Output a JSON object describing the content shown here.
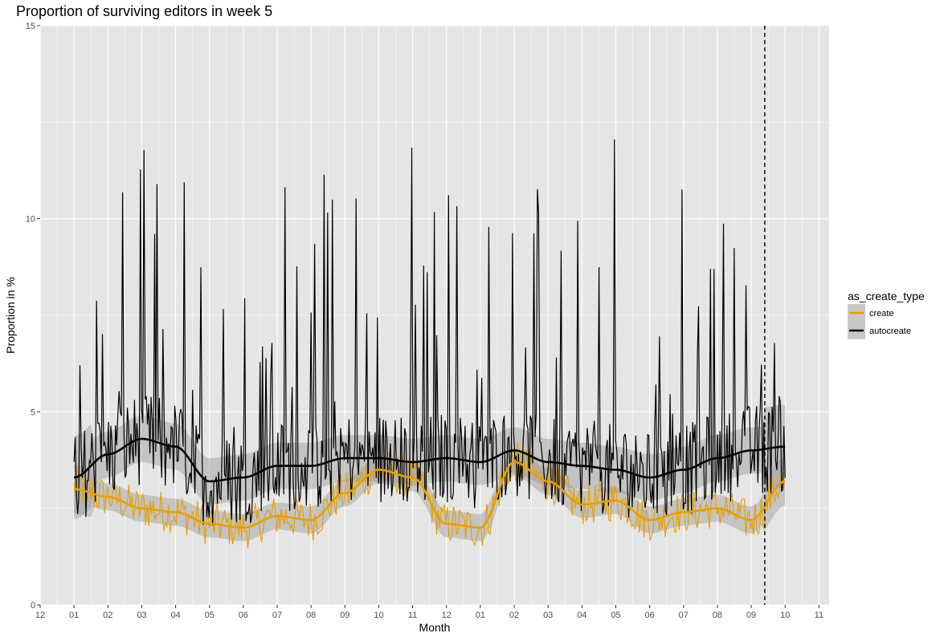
{
  "chart_data": {
    "type": "line",
    "title": "Proportion of surviving editors in week 5",
    "xlabel": "Month",
    "ylabel": "Proportion in %",
    "x_tick_labels": [
      "12",
      "01",
      "02",
      "03",
      "04",
      "05",
      "06",
      "07",
      "08",
      "09",
      "10",
      "11",
      "12",
      "01",
      "02",
      "03",
      "04",
      "05",
      "06",
      "07",
      "08",
      "09",
      "10",
      "11"
    ],
    "y_ticks": [
      0,
      5,
      10,
      15
    ],
    "xlim": [
      -1,
      22.3
    ],
    "ylim": [
      0,
      15
    ],
    "grid": true,
    "legend": {
      "title": "as_create_type",
      "position": "right",
      "entries": [
        {
          "label": "create",
          "color": "#E69F00"
        },
        {
          "label": "autocreate",
          "color": "#000000"
        }
      ]
    },
    "vline": {
      "x": 20.4,
      "style": "dashed",
      "color": "#000000"
    },
    "series": [
      {
        "name": "create",
        "color": "#E69F00",
        "smooth_x": [
          0,
          1,
          2,
          3,
          4,
          5,
          6,
          7,
          8,
          9,
          10,
          11,
          12,
          13,
          14,
          15,
          16,
          17,
          18,
          19,
          20,
          21
        ],
        "smooth_y": [
          3.0,
          2.8,
          2.5,
          2.4,
          2.1,
          2.0,
          2.3,
          2.2,
          2.9,
          3.5,
          3.3,
          2.1,
          2.0,
          3.7,
          3.2,
          2.6,
          2.7,
          2.2,
          2.4,
          2.5,
          2.2,
          3.2
        ],
        "smooth_band": 0.35,
        "raw_noise": 0.55,
        "raw_min": 1.0,
        "raw_max": 7.3
      },
      {
        "name": "autocreate",
        "color": "#000000",
        "smooth_x": [
          0,
          1,
          2,
          3,
          4,
          5,
          6,
          7,
          8,
          9,
          10,
          11,
          12,
          13,
          14,
          15,
          16,
          17,
          18,
          19,
          20,
          21
        ],
        "smooth_y": [
          3.3,
          3.9,
          4.3,
          4.1,
          3.2,
          3.3,
          3.6,
          3.6,
          3.8,
          3.8,
          3.7,
          3.8,
          3.7,
          4.0,
          3.7,
          3.6,
          3.5,
          3.3,
          3.5,
          3.8,
          4.0,
          4.1
        ],
        "smooth_band": 0.6,
        "raw_noise": 2.2,
        "raw_min": 1.0,
        "raw_max": 12.8
      }
    ]
  }
}
